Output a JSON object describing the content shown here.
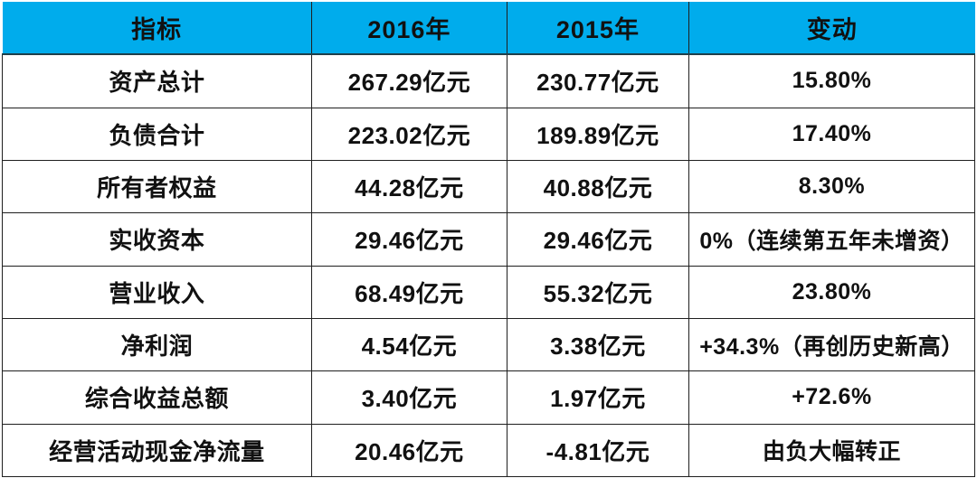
{
  "chart_data": {
    "type": "table",
    "columns": [
      "指标",
      "2016年",
      "2015年",
      "变动"
    ],
    "rows": [
      [
        "资产总计",
        "267.29亿元",
        "230.77亿元",
        "15.80%"
      ],
      [
        "负债合计",
        "223.02亿元",
        "189.89亿元",
        "17.40%"
      ],
      [
        "所有者权益",
        "44.28亿元",
        "40.88亿元",
        "8.30%"
      ],
      [
        "实收资本",
        "29.46亿元",
        "29.46亿元",
        "0%（连续第五年未增资）"
      ],
      [
        "营业收入",
        "68.49亿元",
        "55.32亿元",
        "23.80%"
      ],
      [
        "净利润",
        "4.54亿元",
        "3.38亿元",
        "+34.3%（再创历史新高）"
      ],
      [
        "综合收益总额",
        "3.40亿元",
        "1.97亿元",
        "+72.6%"
      ],
      [
        "经营活动现金净流量",
        "20.46亿元",
        "-4.81亿元",
        "由负大幅转正"
      ]
    ],
    "layout_hints": {
      "header_position": "top",
      "grid": true,
      "column_width_pct": [
        31.8,
        20.1,
        18.7,
        29.4
      ]
    }
  },
  "colors": {
    "header_bg": "#00ACEC",
    "border": "#1f1f1f",
    "text": "#111111",
    "body_bg": "#ffffff"
  }
}
